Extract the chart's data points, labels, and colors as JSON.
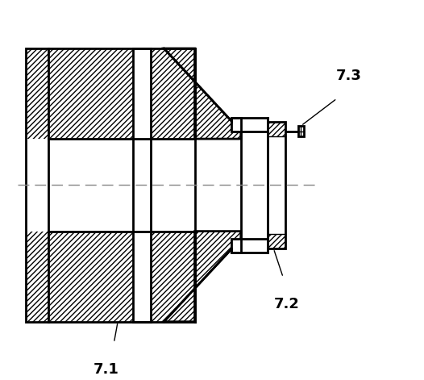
{
  "bg_color": "#ffffff",
  "line_color": "#000000",
  "hatch_color": "#000000",
  "dashed_color": "#888888",
  "label_71": "7.1",
  "label_72": "7.2",
  "label_73": "7.3",
  "lw": 2.0,
  "lw_thin": 1.0,
  "lw_dash": 1.0
}
